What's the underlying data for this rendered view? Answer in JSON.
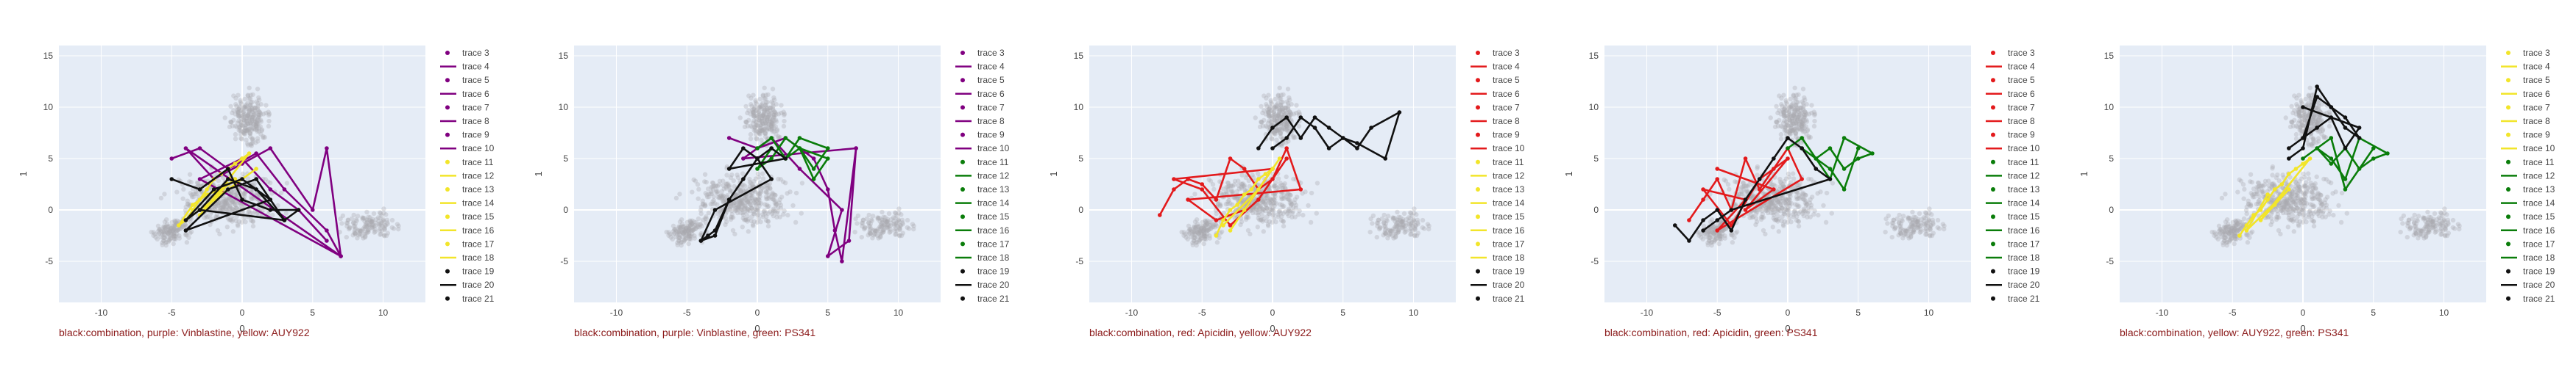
{
  "colors": {
    "plot_bg": "#e5ecf6",
    "grid": "#ffffff",
    "axis_text": "#444444",
    "background_points": "#a8a8b0",
    "caption": "#8b1a1a",
    "black": "#111111",
    "purple": "#800080",
    "yellow": "#f2e52a",
    "green": "#0a7d0a",
    "red": "#e31a1c"
  },
  "chart_data": [
    {
      "type": "scatter",
      "caption": "black:combination, purple: Vinblastine, yellow: AUY922",
      "xlabel": "0",
      "ylabel": "1",
      "xlim": [
        -13,
        13
      ],
      "ylim": [
        -9,
        16
      ],
      "xticks": [
        "-10",
        "-5",
        "0",
        "5",
        "10"
      ],
      "yticks": [
        "-5",
        "0",
        "5",
        "10",
        "15"
      ],
      "grid": true,
      "legend_position": "right",
      "colors": {
        "a": "purple",
        "b": "yellow",
        "c": "black"
      },
      "legend": [
        "trace 3",
        "trace 4",
        "trace 5",
        "trace 6",
        "trace 7",
        "trace 8",
        "trace 9",
        "trace 10",
        "trace 11",
        "trace 12",
        "trace 13",
        "trace 14",
        "trace 15",
        "trace 16",
        "trace 17",
        "trace 18",
        "trace 19",
        "trace 20",
        "trace 21"
      ],
      "series": [
        {
          "color": "purple",
          "x": [
            -5,
            -3,
            -1,
            1,
            3,
            6,
            7,
            -4,
            -2,
            0,
            2,
            5,
            6,
            7,
            -3,
            0,
            2,
            4,
            6
          ],
          "y": [
            5,
            6,
            4,
            5.5,
            2,
            -2,
            -4.5,
            6,
            3,
            4.5,
            6,
            0,
            6,
            -4.5,
            3,
            5,
            2,
            0,
            -3
          ]
        },
        {
          "color": "yellow",
          "x": [
            -4,
            -3.5,
            -3,
            -2.5,
            -2,
            -1.5,
            -1,
            -0.5,
            0,
            0.5,
            -3,
            -2,
            -1,
            0,
            1,
            -4.5,
            -3.5,
            -2.5,
            -1.5,
            -0.5
          ],
          "y": [
            -1,
            0,
            1,
            2,
            3,
            3.5,
            4,
            4.5,
            5,
            5.5,
            -0.5,
            1,
            2.5,
            3,
            4,
            -1.5,
            0.5,
            1.5,
            2,
            3
          ]
        },
        {
          "color": "black",
          "x": [
            -5,
            -3,
            -1,
            0,
            2,
            4,
            3,
            1,
            -1,
            -3,
            -4,
            -2,
            0,
            2,
            -4,
            -1,
            1,
            3,
            -3
          ],
          "y": [
            3,
            2,
            4,
            1,
            0,
            0,
            -1,
            2,
            3,
            0,
            -1,
            2,
            3,
            1,
            -2,
            2,
            3,
            -1,
            0
          ]
        }
      ]
    },
    {
      "type": "scatter",
      "caption": "black:combination, purple: Vinblastine, green: PS341",
      "xlabel": "0",
      "ylabel": "1",
      "xlim": [
        -13,
        13
      ],
      "ylim": [
        -9,
        16
      ],
      "xticks": [
        "-10",
        "-5",
        "0",
        "5",
        "10"
      ],
      "yticks": [
        "-5",
        "0",
        "5",
        "10",
        "15"
      ],
      "grid": true,
      "legend_position": "right",
      "colors": {
        "a": "purple",
        "b": "green",
        "c": "black"
      },
      "legend": [
        "trace 3",
        "trace 4",
        "trace 5",
        "trace 6",
        "trace 7",
        "trace 8",
        "trace 9",
        "trace 10",
        "trace 11",
        "trace 12",
        "trace 13",
        "trace 14",
        "trace 15",
        "trace 16",
        "trace 17",
        "trace 18",
        "trace 19",
        "trace 20",
        "trace 21"
      ],
      "series": [
        {
          "color": "purple",
          "x": [
            -2,
            0,
            2,
            4,
            5,
            5.5,
            6,
            7,
            -1,
            1,
            3,
            6,
            5,
            6.5,
            7
          ],
          "y": [
            7,
            6,
            7,
            5,
            2,
            -2,
            -5,
            6,
            5,
            7,
            4,
            0,
            -4.5,
            -3,
            6
          ]
        },
        {
          "color": "green",
          "x": [
            0,
            1,
            2,
            3,
            4,
            5,
            3,
            2,
            1,
            0,
            1,
            2,
            3,
            4,
            5,
            3
          ],
          "y": [
            6,
            7,
            5,
            6,
            4,
            6,
            7,
            5,
            6,
            4,
            5,
            7,
            6,
            3,
            5,
            6
          ]
        },
        {
          "color": "black",
          "x": [
            -4,
            -3.5,
            -3,
            -2,
            -1,
            0,
            1,
            2,
            -2,
            -1,
            0,
            1,
            -3,
            -4,
            -3,
            -2
          ],
          "y": [
            -3,
            -2.5,
            -2,
            1,
            3,
            5,
            6,
            5,
            4,
            6,
            5,
            3,
            0,
            -3,
            -2.5,
            1
          ]
        }
      ]
    },
    {
      "type": "scatter",
      "caption": "black:combination, red: Apicidin, yellow: AUY922",
      "xlabel": "0",
      "ylabel": "1",
      "xlim": [
        -13,
        13
      ],
      "ylim": [
        -9,
        16
      ],
      "xticks": [
        "-10",
        "-5",
        "0",
        "5",
        "10"
      ],
      "yticks": [
        "-5",
        "0",
        "5",
        "10",
        "15"
      ],
      "grid": true,
      "legend_position": "right",
      "colors": {
        "a": "red",
        "b": "yellow",
        "c": "black"
      },
      "legend": [
        "trace 3",
        "trace 4",
        "trace 5",
        "trace 6",
        "trace 7",
        "trace 8",
        "trace 9",
        "trace 10",
        "trace 11",
        "trace 12",
        "trace 13",
        "trace 14",
        "trace 15",
        "trace 16",
        "trace 17",
        "trace 18",
        "trace 19",
        "trace 20",
        "trace 21"
      ],
      "series": [
        {
          "color": "red",
          "x": [
            -8,
            -7,
            -6,
            -5,
            -4,
            -3,
            -2,
            -1,
            0,
            1,
            2,
            -6,
            -4,
            -2,
            0,
            -7,
            -5,
            -3,
            -1,
            1
          ],
          "y": [
            -0.5,
            2,
            3,
            2.5,
            1,
            5,
            4,
            2,
            3,
            6,
            2,
            1,
            -1,
            0,
            4,
            3,
            2,
            -1.5,
            1,
            5
          ]
        },
        {
          "color": "yellow",
          "x": [
            -4,
            -3.5,
            -3,
            -2.5,
            -2,
            -1.5,
            -1,
            -0.5,
            0,
            0.5,
            -3,
            -2,
            -1,
            -3.5
          ],
          "y": [
            -2.5,
            -1,
            0,
            0.5,
            1.5,
            2,
            3,
            3.5,
            4,
            5,
            -2,
            0,
            2,
            -1.5
          ]
        },
        {
          "color": "black",
          "x": [
            -1,
            0,
            1,
            2,
            3,
            4,
            5,
            6,
            7,
            9,
            8,
            6,
            5,
            4,
            3,
            2,
            1,
            0
          ],
          "y": [
            6,
            8,
            9,
            7,
            9,
            8,
            7,
            6,
            8,
            9.5,
            5,
            6.5,
            7,
            6,
            8,
            9,
            7,
            6
          ]
        }
      ]
    },
    {
      "type": "scatter",
      "caption": "black:combination, red: Apicidin, green: PS341",
      "xlabel": "0",
      "ylabel": "1",
      "xlim": [
        -13,
        13
      ],
      "ylim": [
        -9,
        16
      ],
      "xticks": [
        "-10",
        "-5",
        "0",
        "5",
        "10"
      ],
      "yticks": [
        "-5",
        "0",
        "5",
        "10",
        "15"
      ],
      "grid": true,
      "legend_position": "right",
      "colors": {
        "a": "red",
        "b": "green",
        "c": "black"
      },
      "legend": [
        "trace 3",
        "trace 4",
        "trace 5",
        "trace 6",
        "trace 7",
        "trace 8",
        "trace 9",
        "trace 10",
        "trace 11",
        "trace 12",
        "trace 13",
        "trace 14",
        "trace 15",
        "trace 16",
        "trace 17",
        "trace 18",
        "trace 19",
        "trace 20",
        "trace 21"
      ],
      "series": [
        {
          "color": "red",
          "x": [
            -7,
            -6,
            -5,
            -4,
            -3,
            -2,
            -1,
            0,
            1,
            -5,
            -3,
            -6,
            -4,
            -2,
            0,
            -3,
            -1,
            -5
          ],
          "y": [
            -1,
            1,
            3,
            0,
            5,
            2,
            4,
            6,
            3,
            -2,
            1,
            2,
            -1.5,
            3,
            5,
            0,
            2,
            4
          ]
        },
        {
          "color": "green",
          "x": [
            0,
            1,
            2,
            3,
            4,
            5,
            6,
            4,
            3,
            2,
            1,
            3,
            4,
            5
          ],
          "y": [
            6,
            7,
            5,
            6,
            4,
            5,
            5.5,
            7,
            3,
            5,
            6,
            4,
            2,
            6
          ]
        },
        {
          "color": "black",
          "x": [
            -8,
            -7,
            -6,
            -5,
            -4,
            -3,
            -2,
            -1,
            0,
            1,
            2,
            3,
            -4,
            -5,
            -6
          ],
          "y": [
            -1.5,
            -3,
            -1,
            0,
            -2,
            1,
            3,
            5,
            7,
            6,
            4,
            3,
            0,
            -1,
            -2
          ]
        }
      ]
    },
    {
      "type": "scatter",
      "caption": "black:combination, yellow: AUY922, green: PS341",
      "xlabel": "0",
      "ylabel": "1",
      "xlim": [
        -13,
        13
      ],
      "ylim": [
        -9,
        16
      ],
      "xticks": [
        "-10",
        "-5",
        "0",
        "5",
        "10"
      ],
      "yticks": [
        "-5",
        "0",
        "5",
        "10",
        "15"
      ],
      "grid": true,
      "legend_position": "right",
      "colors": {
        "a": "yellow",
        "b": "green",
        "c": "black"
      },
      "legend": [
        "trace 3",
        "trace 4",
        "trace 5",
        "trace 6",
        "trace 7",
        "trace 8",
        "trace 9",
        "trace 10",
        "trace 11",
        "trace 12",
        "trace 13",
        "trace 14",
        "trace 15",
        "trace 16",
        "trace 17",
        "trace 18",
        "trace 19",
        "trace 20",
        "trace 21"
      ],
      "series": [
        {
          "color": "yellow",
          "x": [
            -4.5,
            -4,
            -3.5,
            -3,
            -2.5,
            -2,
            -1.5,
            -1,
            -0.5,
            0,
            0.5,
            -3,
            -2,
            -1,
            -4,
            -2.5
          ],
          "y": [
            -2.5,
            -1.5,
            -0.5,
            0,
            1,
            2,
            2.5,
            3.5,
            4,
            4.5,
            5,
            -1,
            0.5,
            2,
            -2,
            1.5
          ]
        },
        {
          "color": "green",
          "x": [
            0,
            1,
            2,
            3,
            4,
            5,
            6,
            4,
            3,
            2,
            1,
            2,
            3,
            5
          ],
          "y": [
            5,
            6,
            4.5,
            6,
            4,
            5,
            5.5,
            7,
            3,
            5,
            6,
            7,
            2,
            6
          ]
        },
        {
          "color": "black",
          "x": [
            -1,
            0,
            1,
            2,
            3,
            4,
            3,
            2,
            1,
            0,
            -1,
            1,
            2,
            3,
            4,
            0
          ],
          "y": [
            5,
            6,
            12,
            10,
            9,
            7,
            8,
            10,
            11,
            7,
            6,
            8,
            9,
            6,
            8,
            10
          ]
        }
      ]
    }
  ]
}
